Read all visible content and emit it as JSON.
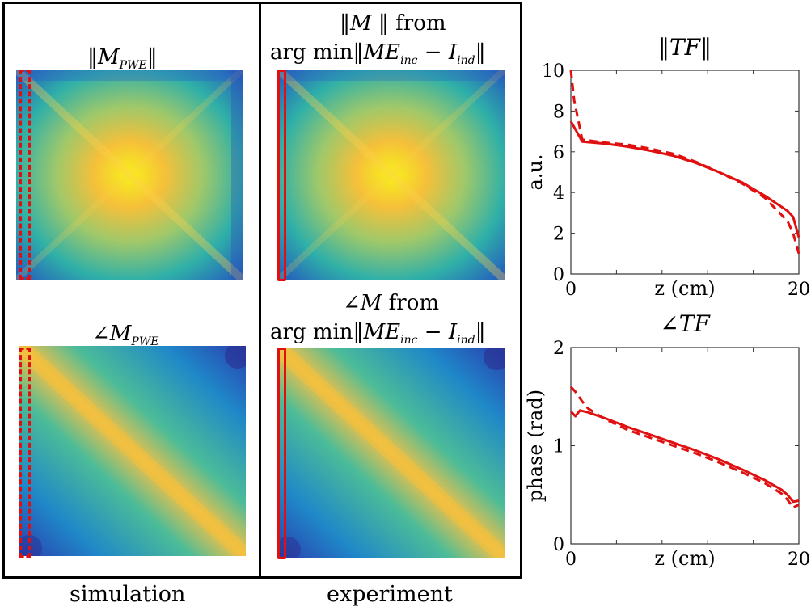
{
  "panels": {
    "simulation": {
      "label": "simulation",
      "mag_title": "‖M_PWE‖",
      "phase_title": "∠M_PWE"
    },
    "experiment": {
      "label": "experiment",
      "mag_title_line1": "‖M ‖ from",
      "mag_title_line2": "arg min‖ME_inc − I_ind‖",
      "phase_title_line1": "∠M from",
      "phase_title_line2": "arg min‖ME_inc − I_ind‖"
    }
  },
  "colors": {
    "line": "#e01010",
    "colormap": [
      "#2a3fb0",
      "#1f78c8",
      "#19a8b0",
      "#6cc080",
      "#f5b840",
      "#f8e81a"
    ]
  },
  "chart_data": [
    {
      "type": "line",
      "title": "‖TF‖",
      "xlabel": "z (cm)",
      "ylabel": "a.u.",
      "xlim": [
        0,
        20
      ],
      "ylim": [
        0,
        10
      ],
      "xticks": [
        0,
        20
      ],
      "yticks": [
        0,
        2,
        4,
        6,
        8,
        10
      ],
      "series": [
        {
          "style": "solid",
          "x": [
            0,
            1,
            3,
            5,
            7,
            9,
            11,
            13,
            15,
            17,
            19,
            19.5,
            20
          ],
          "y": [
            7.5,
            6.5,
            6.4,
            6.25,
            6.05,
            5.8,
            5.45,
            5.0,
            4.5,
            3.85,
            3.1,
            2.8,
            1.8
          ]
        },
        {
          "style": "dashed",
          "x": [
            0,
            0.3,
            1,
            3,
            5,
            7,
            9,
            11,
            13,
            15,
            17,
            19,
            19.5,
            20
          ],
          "y": [
            10,
            8.5,
            6.6,
            6.45,
            6.35,
            6.15,
            5.9,
            5.5,
            5.0,
            4.45,
            3.75,
            2.6,
            2.0,
            1.0
          ]
        }
      ]
    },
    {
      "type": "line",
      "title": "∠TF",
      "xlabel": "z (cm)",
      "ylabel": "phase (rad)",
      "xlim": [
        0,
        20
      ],
      "ylim": [
        0,
        2
      ],
      "xticks": [
        0,
        20
      ],
      "yticks": [
        0,
        1,
        2
      ],
      "series": [
        {
          "style": "solid",
          "x": [
            0,
            0.4,
            0.8,
            1.5,
            3,
            5,
            7,
            9,
            11,
            13,
            15,
            17,
            18.5,
            19,
            19.5,
            20
          ],
          "y": [
            1.35,
            1.3,
            1.36,
            1.34,
            1.28,
            1.19,
            1.11,
            1.03,
            0.95,
            0.86,
            0.76,
            0.65,
            0.55,
            0.5,
            0.43,
            0.44
          ]
        },
        {
          "style": "dashed",
          "x": [
            0,
            0.4,
            1,
            1.5,
            3,
            5,
            7,
            9,
            11,
            13,
            15,
            17,
            18.5,
            19,
            19.5,
            20
          ],
          "y": [
            1.6,
            1.55,
            1.45,
            1.38,
            1.27,
            1.16,
            1.08,
            1.0,
            0.92,
            0.83,
            0.73,
            0.62,
            0.51,
            0.45,
            0.37,
            0.4
          ]
        }
      ]
    }
  ]
}
